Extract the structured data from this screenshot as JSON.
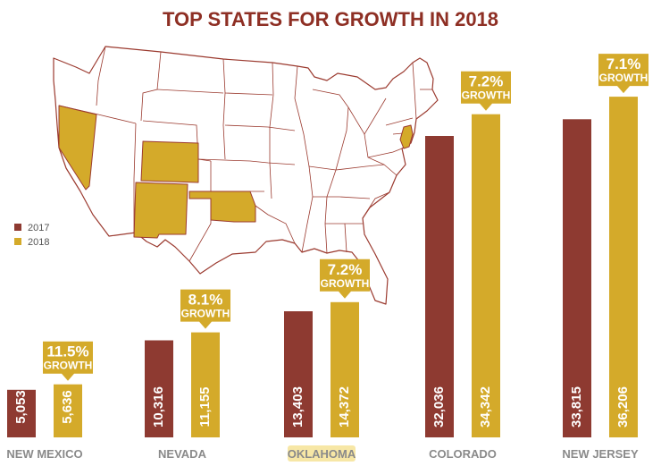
{
  "colors": {
    "y2017": "#8e3a31",
    "y2018": "#d4aa2a",
    "title": "#8e2f24",
    "label": "#8a8a8a",
    "highlight": "#f7e7a6"
  },
  "map": {
    "highlighted_states": [
      "Nevada",
      "Colorado",
      "New Mexico",
      "Oklahoma",
      "New Jersey"
    ]
  },
  "badge_word": "GROWTH",
  "chart_data": {
    "type": "bar",
    "title": "TOP STATES FOR GROWTH IN 2018",
    "categories": [
      "NEW MEXICO",
      "NEVADA",
      "OKLAHOMA",
      "COLORADO",
      "NEW JERSEY"
    ],
    "highlighted_category": "OKLAHOMA",
    "series": [
      {
        "name": "2017",
        "values": [
          5053,
          10316,
          13403,
          32036,
          33815
        ],
        "labels": [
          "5,053",
          "10,316",
          "13,403",
          "32,036",
          "33,815"
        ]
      },
      {
        "name": "2018",
        "values": [
          5636,
          11155,
          14372,
          34342,
          36206
        ],
        "labels": [
          "5,636",
          "11,155",
          "14,372",
          "34,342",
          "36,206"
        ]
      }
    ],
    "growth": [
      "11.5%",
      "8.1%",
      "7.2%",
      "7.2%",
      "7.1%"
    ],
    "legend": {
      "entries": [
        "2017",
        "2018"
      ],
      "placement": "left"
    },
    "grid": false
  }
}
